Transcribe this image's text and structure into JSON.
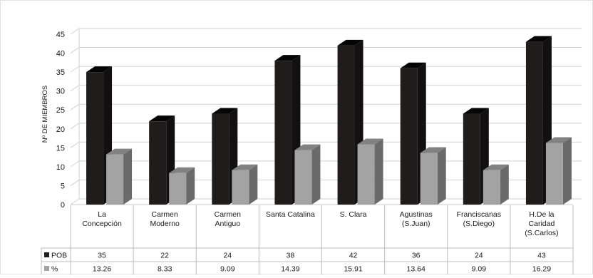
{
  "chart_data": {
    "type": "bar",
    "title": "",
    "xlabel": "",
    "ylabel": "Nº DE MIEMBROS",
    "ylim": [
      0,
      45
    ],
    "yticks": [
      0,
      5,
      10,
      15,
      20,
      25,
      30,
      35,
      40,
      45
    ],
    "grid": true,
    "legend": "data-table-left",
    "categories": [
      [
        "La",
        "Concepción"
      ],
      [
        "Carmen",
        "Moderno"
      ],
      [
        "Carmen",
        "Antiguo"
      ],
      [
        "Santa Catalina"
      ],
      [
        "S. Clara"
      ],
      [
        "Agustinas",
        "(S.Juan)"
      ],
      [
        "Franciscanas",
        "(S.Diego)"
      ],
      [
        "H.De la",
        "Caridad",
        "(S.Carlos)"
      ]
    ],
    "series": [
      {
        "name": "POB",
        "color": "#1f1c1b",
        "values": [
          35,
          22,
          24,
          38,
          42,
          36,
          24,
          43
        ],
        "labels": [
          "35",
          "22",
          "24",
          "38",
          "42",
          "36",
          "24",
          "43"
        ]
      },
      {
        "name": "%",
        "color": "#a3a3a3",
        "values": [
          13.26,
          8.33,
          9.09,
          14.39,
          15.91,
          13.64,
          9.09,
          16.29
        ],
        "labels": [
          "13.26",
          "8.33",
          "9.09",
          "14.39",
          "15.91",
          "13.64",
          "9.09",
          "16.29"
        ]
      }
    ]
  }
}
